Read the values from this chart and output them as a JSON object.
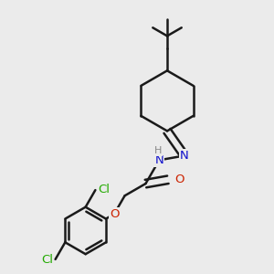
{
  "bg_color": "#ebebeb",
  "bond_color": "#1a1a1a",
  "bond_width": 1.8,
  "atom_colors": {
    "C": "#1a1a1a",
    "N": "#1010cc",
    "O": "#cc2200",
    "Cl": "#22aa00",
    "H": "#888888"
  },
  "font_size": 9.5
}
